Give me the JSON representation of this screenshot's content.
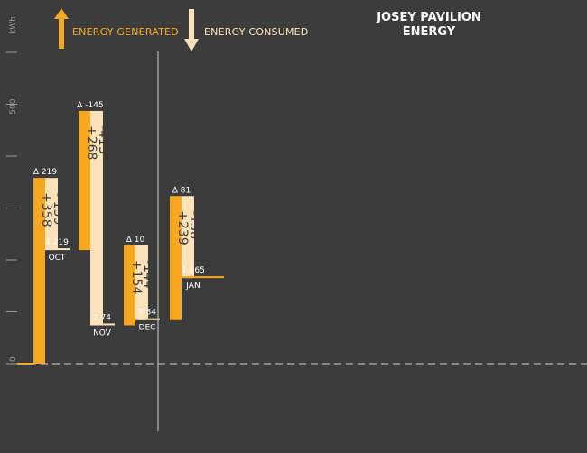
{
  "title_line1": "JOSEY PAVILION",
  "title_line2": "ENERGY",
  "legend": {
    "generated": "ENERGY GENERATED",
    "consumed": "ENERGY CONSUMED"
  },
  "colors": {
    "background": "#3c3c3d",
    "generated": "#f7a823",
    "consumed": "#fde1b8",
    "axis": "#9a9a9a",
    "text": "#ffffff",
    "dark_text": "#3c3c3d"
  },
  "chart_data": {
    "type": "waterfall",
    "ylabel": "kWh",
    "yticks": [
      0,
      500
    ],
    "ylim": [
      -100,
      700
    ],
    "months": [
      {
        "month": "OCT",
        "start": 0,
        "generated": 358,
        "consumed": -139,
        "gen_label": "+358",
        "con_label": "- 139",
        "delta": "Δ 219",
        "sum": "Σ 219"
      },
      {
        "month": "NOV",
        "start": 219,
        "generated": 268,
        "consumed": -413,
        "gen_label": "+268",
        "con_label": "-413",
        "delta": "Δ -145",
        "sum": "Σ 74"
      },
      {
        "month": "DEC",
        "start": 74,
        "generated": 154,
        "consumed": -144,
        "gen_label": "+154",
        "con_label": "-144",
        "delta": "Δ 10",
        "sum": "Σ 84"
      },
      {
        "month": "JAN",
        "start": 84,
        "generated": 239,
        "consumed": -158,
        "gen_label": "+239",
        "con_label": "-158",
        "delta": "Δ 81",
        "sum": "Σ 165"
      }
    ]
  }
}
